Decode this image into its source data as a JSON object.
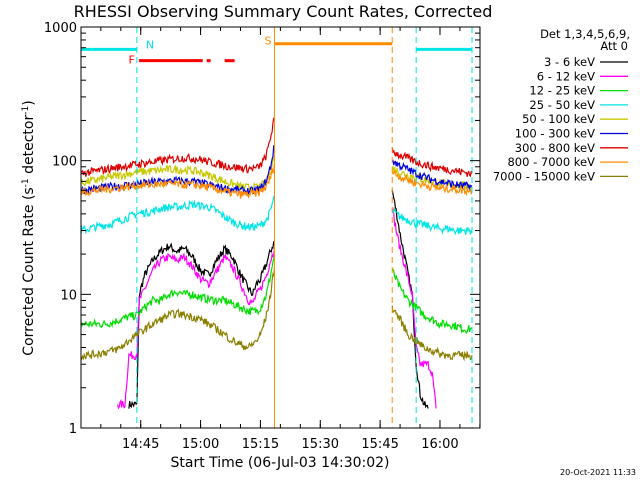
{
  "chart_data": {
    "type": "line",
    "title": "RHESSI Observing Summary Count Rates, Corrected",
    "xlabel": "Start Time (06-Jul-03 14:30:02)",
    "ylabel_main": "Corrected Count Rate (s",
    "ylabel_sup1": "-1",
    "ylabel_mid": " detector",
    "ylabel_sup2": "-1",
    "ylabel_end": ")",
    "footer": "20-Oct-2021 11:33",
    "detectors_line1": "Det 1,3,4,5,6,9,",
    "detectors_line2": "Att 0",
    "y_scale": "log",
    "ylim": [
      1,
      1000
    ],
    "y_ticks": [
      {
        "value": 1,
        "label": "1"
      },
      {
        "value": 10,
        "label": "10"
      },
      {
        "value": 100,
        "label": "100"
      },
      {
        "value": 1000,
        "label": "1000"
      }
    ],
    "xlim_minutes": [
      0,
      100
    ],
    "x_ticks": [
      {
        "value": 14.97,
        "label": "14:45"
      },
      {
        "value": 29.97,
        "label": "15:00"
      },
      {
        "value": 44.97,
        "label": "15:15"
      },
      {
        "value": 59.97,
        "label": "15:30"
      },
      {
        "value": 74.97,
        "label": "15:45"
      },
      {
        "value": 89.97,
        "label": "16:00"
      }
    ],
    "flags": {
      "night_label": "N",
      "night_level": 680,
      "night_segments": [
        [
          0,
          14.0
        ],
        [
          84.0,
          98.0
        ]
      ],
      "night_boundaries": [
        14.0,
        84.0,
        98.0
      ],
      "flare_label": "F",
      "flare_level": 560,
      "flare_segments": [
        [
          14.5,
          30.5
        ],
        [
          31.5,
          32.5
        ],
        [
          36.0,
          38.5
        ]
      ],
      "saa_label": "S",
      "saa_level": 750,
      "saa_segment": [
        48.5,
        78.0
      ],
      "saa_boundaries": [
        48.5,
        78.0
      ],
      "line_colors": {
        "night": "#00e5e5",
        "flare": "#ff0000",
        "saa": "#ff8c00"
      }
    },
    "legend_position": "right",
    "series": [
      {
        "name": "3 - 6 keV",
        "color": "#000000",
        "segments": [
          {
            "x": [
              12,
              14,
              14.6,
              16,
              18,
              20,
              22,
              24,
              26,
              28,
              30,
              32,
              34,
              36,
              38,
              40,
              42,
              43,
              44,
              45,
              46.5,
              47.5,
              48.5
            ],
            "y": [
              1.5,
              1.5,
              10,
              14,
              18,
              21,
              23,
              21,
              22,
              19,
              15,
              14,
              18,
              22,
              19,
              14,
              11,
              10,
              12,
              13,
              17,
              21,
              25
            ]
          },
          {
            "x": [
              78,
              79,
              80,
              81,
              82,
              83,
              84,
              85,
              86,
              87
            ],
            "y": [
              60,
              42,
              28,
              20,
              14,
              10,
              3,
              1.8,
              1.5,
              1.4
            ]
          }
        ]
      },
      {
        "name": "6 - 12 keV",
        "color": "#ff00ff",
        "segments": [
          {
            "x": [
              9,
              10,
              11,
              12,
              13,
              14,
              14.6,
              16,
              18,
              20,
              22,
              24,
              26,
              28,
              30,
              32,
              34,
              36,
              38,
              40,
              42,
              43,
              44,
              45,
              46.5,
              47.5,
              48.5
            ],
            "y": [
              1.5,
              1.5,
              1.5,
              3.5,
              3.5,
              3.5,
              9,
              11,
              15,
              18,
              19,
              18,
              19,
              16,
              13,
              12,
              15,
              19,
              16,
              12,
              9,
              8.5,
              10,
              11,
              14,
              18,
              22
            ]
          },
          {
            "x": [
              78,
              79,
              80,
              81,
              82,
              83,
              84,
              85,
              86,
              87,
              88,
              89
            ],
            "y": [
              45,
              30,
              22,
              17,
              13,
              10,
              4,
              3,
              3,
              3,
              2.6,
              1.4
            ]
          }
        ]
      },
      {
        "name": "12 - 25 keV",
        "color": "#00dd00",
        "segments": [
          {
            "x": [
              0,
              2,
              4,
              6,
              8,
              10,
              12,
              14,
              16,
              18,
              20,
              22,
              24,
              26,
              28,
              30,
              32,
              34,
              36,
              38,
              40,
              42,
              44,
              45,
              46.5,
              47.5,
              48.5
            ],
            "y": [
              6,
              6,
              6,
              6,
              6.2,
              6.5,
              6.8,
              7,
              8,
              9,
              9,
              10,
              10.5,
              10,
              10,
              9.5,
              9.2,
              9,
              9,
              8.5,
              8,
              7.5,
              7.5,
              8,
              10,
              14,
              20
            ]
          },
          {
            "x": [
              78,
              79,
              80,
              81,
              82,
              84,
              86,
              88,
              90,
              92,
              94,
              96,
              98
            ],
            "y": [
              15,
              13,
              11,
              10,
              9,
              8,
              7,
              6.5,
              6,
              6,
              5.8,
              5.5,
              5.5
            ]
          }
        ]
      },
      {
        "name": "25 - 50 keV",
        "color": "#00e5e5",
        "segments": [
          {
            "x": [
              0,
              2,
              4,
              6,
              8,
              10,
              12,
              14,
              16,
              18,
              20,
              22,
              24,
              26,
              28,
              30,
              32,
              34,
              36,
              38,
              40,
              42,
              44,
              45,
              46.5,
              47.5,
              48.5
            ],
            "y": [
              30,
              31,
              32,
              33,
              34,
              36,
              38,
              40,
              41,
              42,
              44,
              45,
              45,
              46,
              47,
              46,
              45,
              42,
              38,
              35,
              33,
              32,
              32,
              33,
              36,
              42,
              55
            ]
          },
          {
            "x": [
              78,
              80,
              82,
              84,
              86,
              88,
              90,
              92,
              94,
              96,
              98
            ],
            "y": [
              42,
              38,
              36,
              34,
              33,
              32,
              31,
              31,
              30,
              30,
              30
            ]
          }
        ]
      },
      {
        "name": "50 - 100 keV",
        "color": "#c8c800",
        "segments": [
          {
            "x": [
              0,
              2,
              4,
              6,
              8,
              10,
              12,
              14,
              16,
              18,
              20,
              22,
              24,
              26,
              28,
              30,
              32,
              34,
              36,
              38,
              40,
              42,
              44,
              45,
              46.5,
              47.5,
              48.5
            ],
            "y": [
              68,
              70,
              72,
              74,
              76,
              78,
              80,
              82,
              83,
              84,
              85,
              86,
              86,
              85,
              84,
              82,
              78,
              74,
              70,
              67,
              64,
              63,
              63,
              64,
              70,
              85,
              110
            ]
          },
          {
            "x": [
              78,
              80,
              82,
              84,
              86,
              88,
              90,
              92,
              94,
              96,
              98
            ],
            "y": [
              88,
              82,
              78,
              75,
              72,
              70,
              68,
              67,
              66,
              65,
              64
            ]
          }
        ]
      },
      {
        "name": "100 - 300 keV",
        "color": "#0000dd",
        "segments": [
          {
            "x": [
              0,
              2,
              4,
              6,
              8,
              10,
              12,
              14,
              16,
              18,
              20,
              22,
              24,
              26,
              28,
              30,
              32,
              34,
              36,
              38,
              40,
              42,
              44,
              45,
              46.5,
              47.5,
              48.5
            ],
            "y": [
              60,
              61,
              62,
              63,
              64,
              65,
              66,
              67,
              68,
              69,
              70,
              70,
              71,
              70,
              70,
              68,
              66,
              64,
              62,
              61,
              60,
              59,
              60,
              62,
              70,
              90,
              130
            ]
          },
          {
            "x": [
              78,
              80,
              82,
              84,
              86,
              88,
              90,
              92,
              94,
              96,
              98
            ],
            "y": [
              100,
              92,
              86,
              80,
              76,
              72,
              70,
              68,
              66,
              65,
              64
            ]
          }
        ]
      },
      {
        "name": "300 - 800 keV",
        "color": "#dd0000",
        "segments": [
          {
            "x": [
              0,
              2,
              4,
              6,
              8,
              10,
              12,
              14,
              16,
              18,
              20,
              22,
              24,
              26,
              28,
              30,
              32,
              34,
              36,
              38,
              40,
              42,
              44,
              45,
              46.5,
              47.5,
              48.5
            ],
            "y": [
              80,
              82,
              84,
              86,
              88,
              90,
              92,
              94,
              96,
              98,
              100,
              102,
              104,
              105,
              104,
              102,
              98,
              95,
              92,
              90,
              88,
              87,
              88,
              92,
              110,
              150,
              210
            ]
          },
          {
            "x": [
              78,
              80,
              82,
              84,
              86,
              88,
              90,
              92,
              94,
              96,
              98
            ],
            "y": [
              118,
              110,
              104,
              98,
              94,
              90,
              88,
              86,
              84,
              82,
              80
            ]
          }
        ]
      },
      {
        "name": "800 - 7000 keV",
        "color": "#ff8c00",
        "segments": [
          {
            "x": [
              0,
              2,
              4,
              6,
              8,
              10,
              12,
              14,
              16,
              18,
              20,
              22,
              24,
              26,
              28,
              30,
              32,
              34,
              36,
              38,
              40,
              42,
              44,
              45,
              46.5,
              47.5,
              48.5
            ],
            "y": [
              58,
              59,
              60,
              61,
              62,
              63,
              64,
              65,
              66,
              66,
              67,
              67,
              67,
              66,
              66,
              65,
              63,
              61,
              59,
              57,
              56,
              56,
              57,
              59,
              64,
              75,
              95
            ]
          },
          {
            "x": [
              78,
              80,
              82,
              84,
              86,
              88,
              90,
              92,
              94,
              96,
              98
            ],
            "y": [
              82,
              76,
              72,
              68,
              66,
              64,
              62,
              62,
              61,
              60,
              60
            ]
          }
        ]
      },
      {
        "name": "7000 - 15000 keV",
        "color": "#8b8000",
        "segments": [
          {
            "x": [
              0,
              2,
              4,
              6,
              8,
              10,
              12,
              14,
              16,
              18,
              20,
              22,
              24,
              26,
              28,
              30,
              32,
              34,
              36,
              38,
              40,
              42,
              44,
              45,
              46.5,
              47.5,
              48.5
            ],
            "y": [
              3.5,
              3.5,
              3.6,
              3.7,
              3.8,
              4,
              4.5,
              5,
              5.5,
              6,
              6.5,
              7,
              7.2,
              7,
              6.8,
              6.5,
              6,
              5.5,
              5,
              4.5,
              4.2,
              4,
              4.5,
              5,
              7,
              10,
              16
            ]
          },
          {
            "x": [
              78,
              80,
              82,
              84,
              86,
              88,
              90,
              92,
              94,
              96,
              98
            ],
            "y": [
              8,
              6.5,
              5,
              4.5,
              4,
              3.8,
              3.6,
              3.5,
              3.5,
              3.5,
              3.5
            ]
          }
        ]
      }
    ]
  }
}
